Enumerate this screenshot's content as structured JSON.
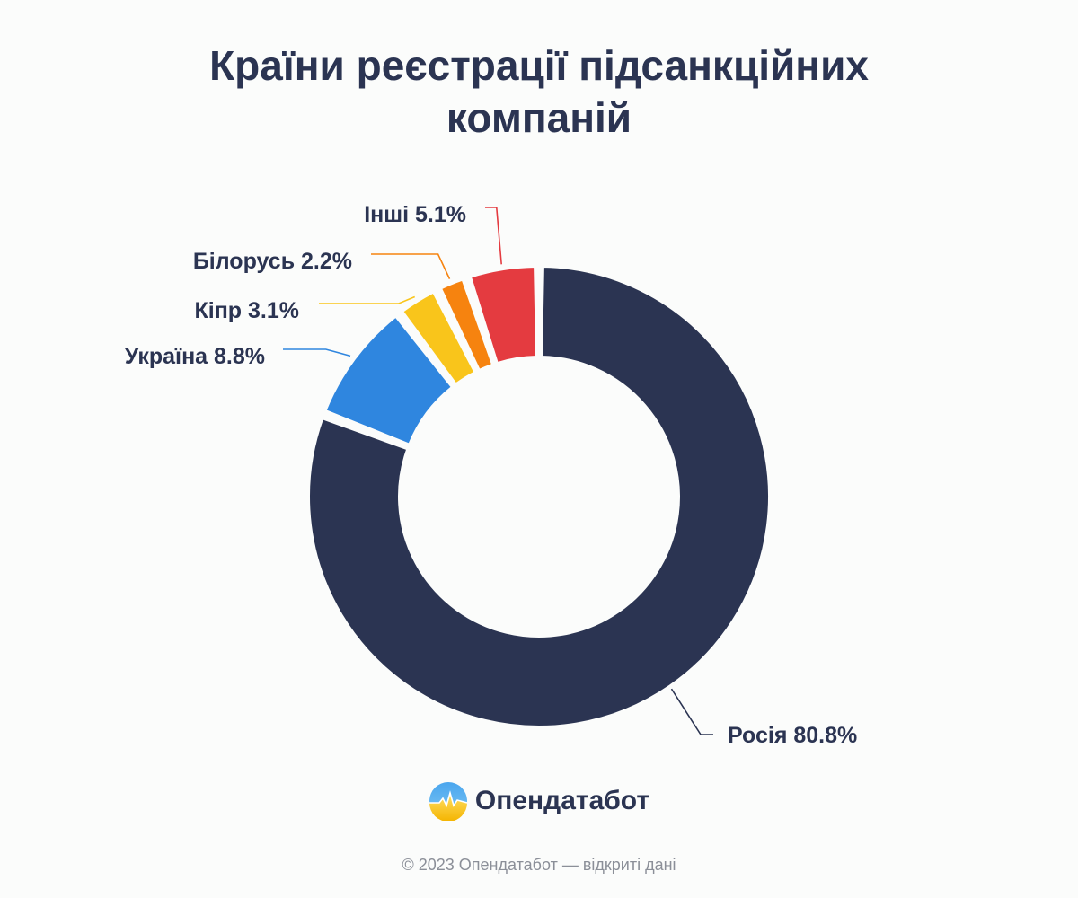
{
  "chart_data": {
    "type": "pie",
    "donut": true,
    "title_lines": [
      "Країни реєстрації підсанкційних",
      "компаній"
    ],
    "slices": [
      {
        "label": "Росія",
        "value": 80.8,
        "display": "Росія 80.8%",
        "color": "#2b3452"
      },
      {
        "label": "Україна",
        "value": 8.8,
        "display": "Україна 8.8%",
        "color": "#2f86df"
      },
      {
        "label": "Кіпр",
        "value": 3.1,
        "display": "Кіпр 3.1%",
        "color": "#f9c51b"
      },
      {
        "label": "Білорусь",
        "value": 2.2,
        "display": "Білорусь 2.2%",
        "color": "#f6830f"
      },
      {
        "label": "Інші",
        "value": 5.1,
        "display": "Інші 5.1%",
        "color": "#e43b40"
      }
    ],
    "legend": "none"
  },
  "brand": {
    "name": "Опендатабот",
    "icon": "opendatabot-logo-icon"
  },
  "footer": {
    "copyright": "© 2023 Опендатабот — відкриті дані"
  }
}
